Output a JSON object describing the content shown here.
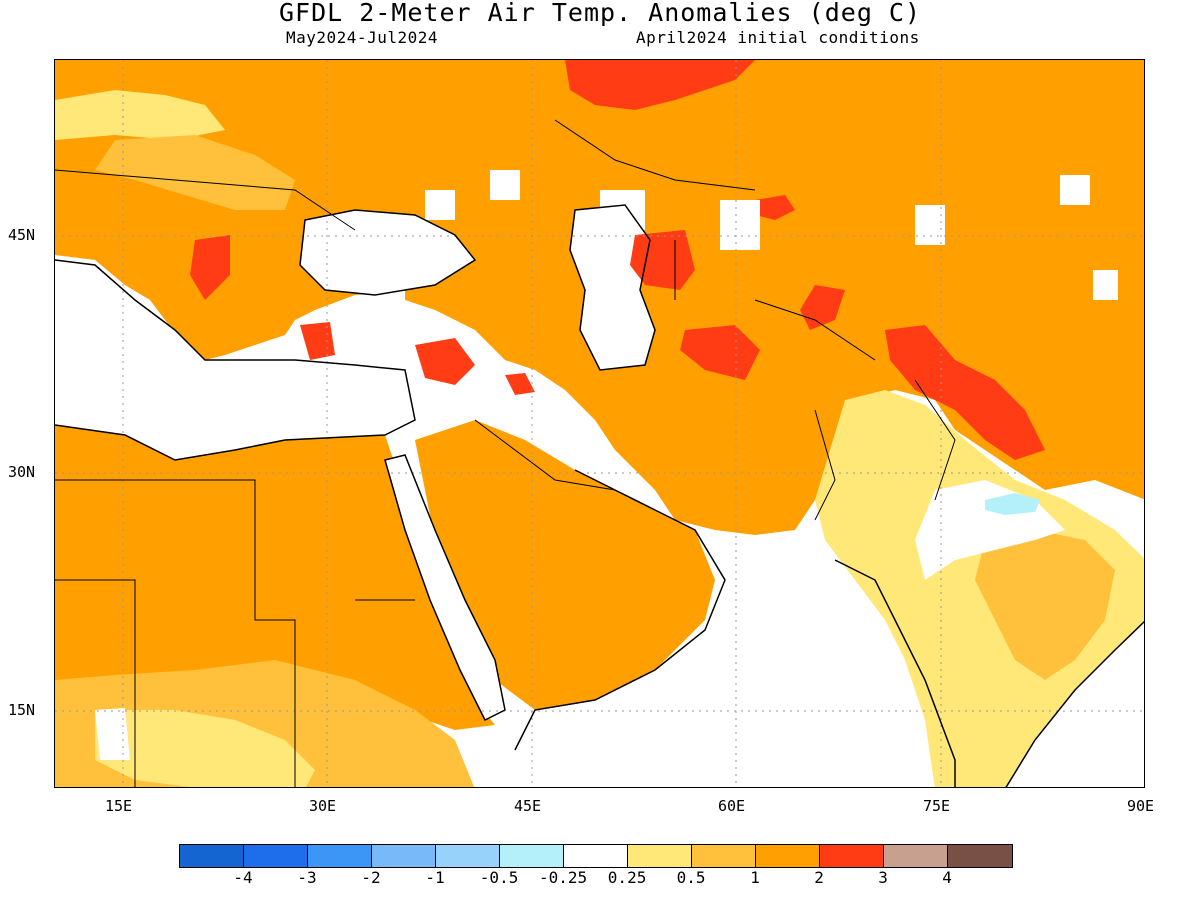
{
  "header": {
    "title": "GFDL 2-Meter Air Temp. Anomalies (deg C)",
    "period": "May2024-Jul2024",
    "init": "April2024 initial conditions"
  },
  "axes": {
    "lat_labels": [
      "45N",
      "30N",
      "15N"
    ],
    "lon_labels": [
      "15E",
      "30E",
      "45E",
      "60E",
      "75E",
      "90E"
    ]
  },
  "colorbar": {
    "colors": [
      "#1464d2",
      "#1e6eeb",
      "#3c96f5",
      "#78b9fa",
      "#96d2fa",
      "#b4f0fa",
      "#ffffff",
      "#ffe878",
      "#ffc03c",
      "#ffa000",
      "#ff3c14",
      "#c8a090",
      "#785046"
    ],
    "labels": [
      "-4",
      "-3",
      "-2",
      "-1",
      "-0.5",
      "-0.25",
      "0.25",
      "0.5",
      "1",
      "2",
      "3",
      "4"
    ]
  },
  "legend": {
    "neutral_color": "#ffffff",
    "weak_warm_color": "#ffe878",
    "mild_warm_color": "#ffc03c",
    "warm_color": "#ffa000",
    "hot_color": "#ff3c14",
    "cool_color": "#b4f0fa",
    "coast_color": "#000000"
  }
}
